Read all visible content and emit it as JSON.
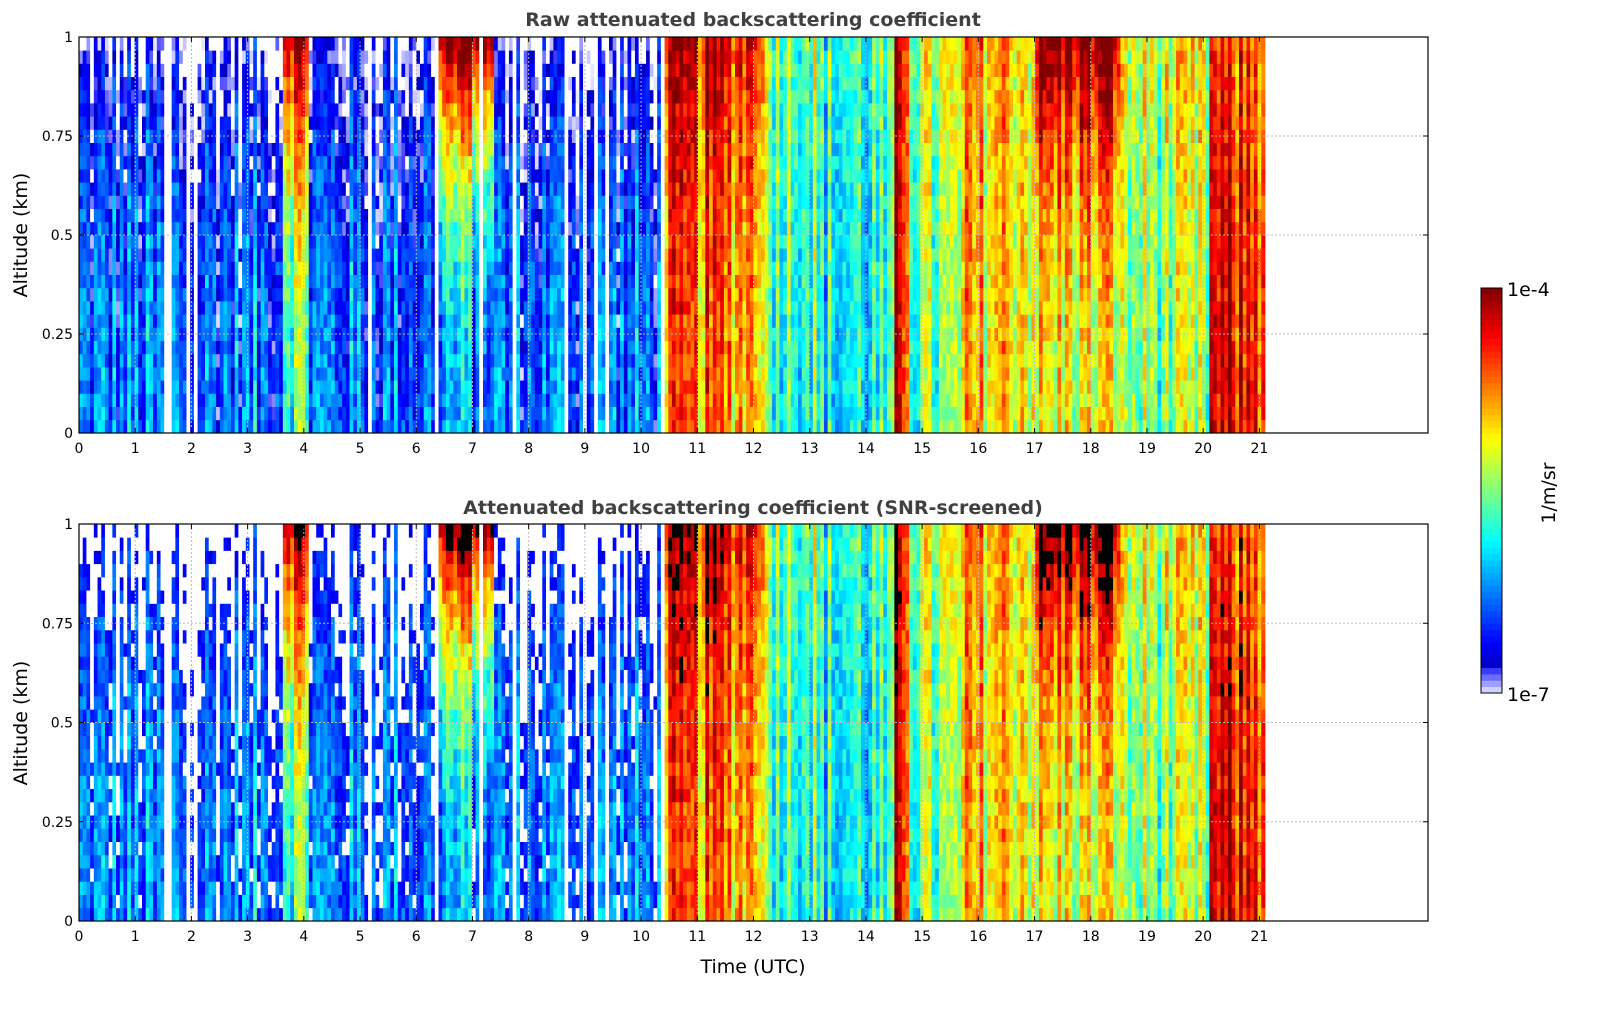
{
  "chart_data": [
    {
      "type": "heatmap",
      "title": "Raw attenuated backscattering coefficient",
      "xlabel": "",
      "ylabel": "Altitude (km)",
      "xlim": [
        0,
        24
      ],
      "ylim": [
        0,
        1
      ],
      "xticks": [
        "0",
        "1",
        "2",
        "3",
        "4",
        "5",
        "6",
        "7",
        "8",
        "9",
        "10",
        "11",
        "12",
        "13",
        "14",
        "15",
        "16",
        "17",
        "18",
        "19",
        "20",
        "21"
      ],
      "yticks": [
        "0",
        "0.25",
        "0.5",
        "0.75",
        "1"
      ],
      "grid": true,
      "screened": false
    },
    {
      "type": "heatmap",
      "title": "Attenuated backscattering coefficient (SNR-screened)",
      "xlabel": "Time (UTC)",
      "ylabel": "Altitude (km)",
      "xlim": [
        0,
        24
      ],
      "ylim": [
        0,
        1
      ],
      "xticks": [
        "0",
        "1",
        "2",
        "3",
        "4",
        "5",
        "6",
        "7",
        "8",
        "9",
        "10",
        "11",
        "12",
        "13",
        "14",
        "15",
        "16",
        "17",
        "18",
        "19",
        "20",
        "21"
      ],
      "yticks": [
        "0",
        "0.25",
        "0.5",
        "0.75",
        "1"
      ],
      "grid": true,
      "screened": true
    }
  ],
  "colorbar": {
    "label": "1/m/sr",
    "max_label": "1e-4",
    "min_label": "1e-7",
    "log10_range": [
      -7,
      -4
    ],
    "colormap": "jet"
  },
  "profile_segments_log10": [
    {
      "t0": 0.0,
      "t1": 3.6,
      "ground": -6.3,
      "top": -7.0
    },
    {
      "t0": 3.6,
      "t1": 4.1,
      "ground": -5.6,
      "top": -4.1
    },
    {
      "t0": 4.1,
      "t1": 6.3,
      "ground": -6.3,
      "top": -6.9
    },
    {
      "t0": 6.3,
      "t1": 7.4,
      "ground": -6.2,
      "top": -4.0
    },
    {
      "t0": 7.4,
      "t1": 10.4,
      "ground": -6.3,
      "top": -7.0
    },
    {
      "t0": 10.4,
      "t1": 12.2,
      "ground": -4.8,
      "top": -4.3
    },
    {
      "t0": 12.2,
      "t1": 13.1,
      "ground": -5.6,
      "top": -5.4
    },
    {
      "t0": 13.1,
      "t1": 14.5,
      "ground": -5.9,
      "top": -5.7
    },
    {
      "t0": 14.5,
      "t1": 14.8,
      "ground": -4.4,
      "top": -4.3
    },
    {
      "t0": 14.8,
      "t1": 15.7,
      "ground": -5.6,
      "top": -5.3
    },
    {
      "t0": 15.7,
      "t1": 17.0,
      "ground": -5.0,
      "top": -4.9
    },
    {
      "t0": 17.0,
      "t1": 18.5,
      "ground": -5.2,
      "top": -4.0
    },
    {
      "t0": 18.5,
      "t1": 20.1,
      "ground": -5.5,
      "top": -5.2
    },
    {
      "t0": 20.1,
      "t1": 21.1,
      "ground": -4.4,
      "top": -4.6
    }
  ]
}
